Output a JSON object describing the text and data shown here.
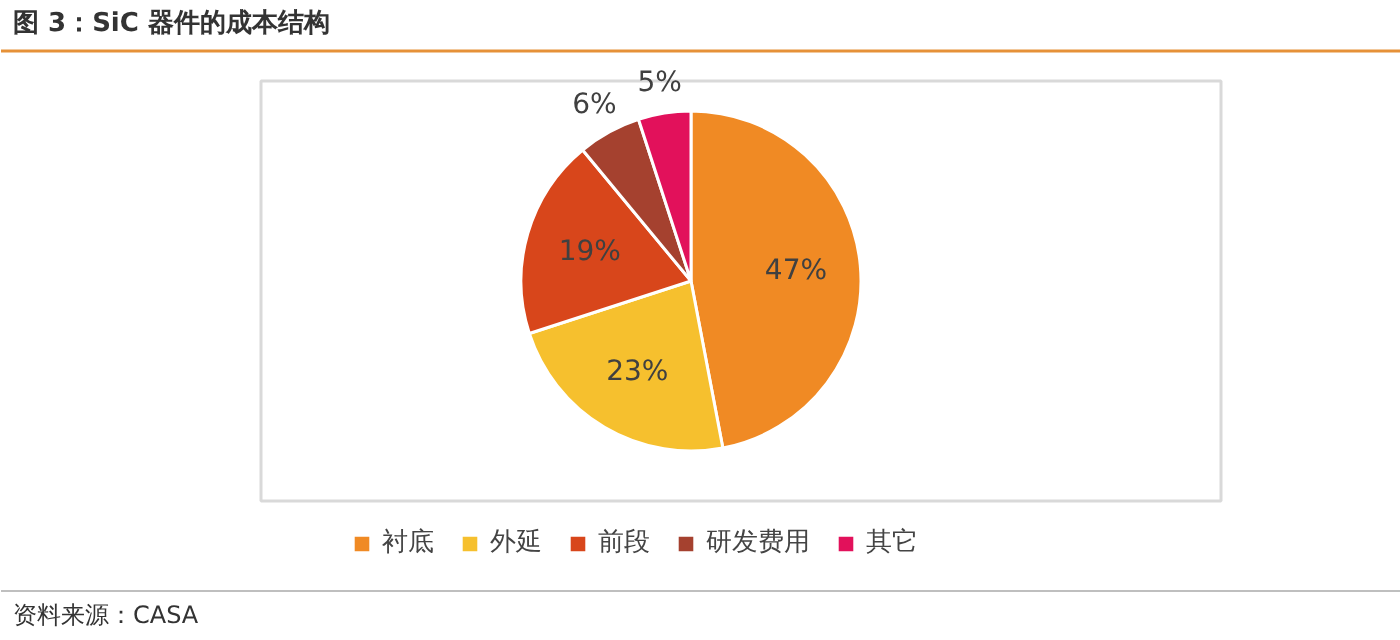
{
  "chart_data": {
    "type": "pie",
    "title": "图 3：SiC 器件的成本结构",
    "categories": [
      "衬底",
      "外延",
      "前段",
      "研发费用",
      "其它"
    ],
    "values": [
      47,
      23,
      19,
      6,
      5
    ],
    "colors": [
      "#f08a24",
      "#f6c02e",
      "#d8461b",
      "#a5412f",
      "#e2115b"
    ],
    "value_labels": [
      "47%",
      "23%",
      "19%",
      "6%",
      "5%"
    ],
    "legend": "bottom",
    "annotations": [
      "资料来源：CASA"
    ]
  }
}
